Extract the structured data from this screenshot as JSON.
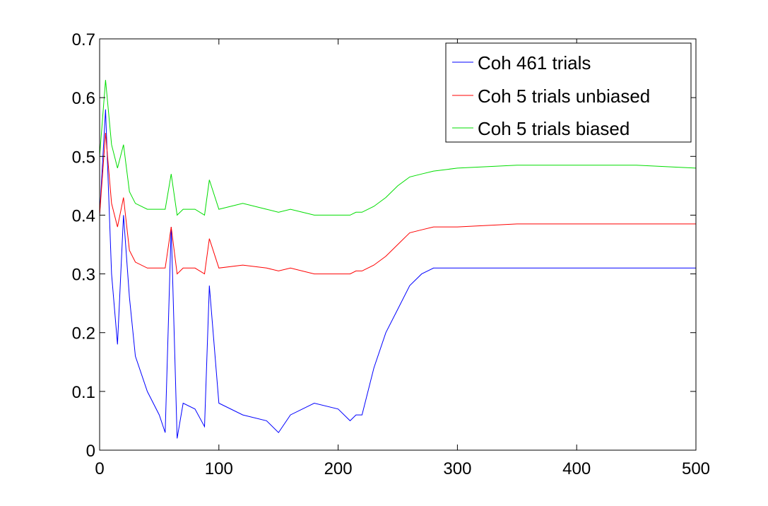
{
  "chart_data": {
    "type": "line",
    "title": "",
    "xlabel": "",
    "ylabel": "",
    "xlim": [
      0,
      500
    ],
    "ylim": [
      0,
      0.7
    ],
    "xticks": [
      0,
      100,
      200,
      300,
      400,
      500
    ],
    "yticks": [
      0,
      0.1,
      0.2,
      0.3,
      0.4,
      0.5,
      0.6,
      0.7
    ],
    "xtick_labels": [
      "0",
      "100",
      "200",
      "300",
      "400",
      "500"
    ],
    "ytick_labels": [
      "0",
      "0.1",
      "0.2",
      "0.3",
      "0.4",
      "0.5",
      "0.6",
      "0.7"
    ],
    "grid": false,
    "legend_position": "top-right",
    "series": [
      {
        "name": "Coh 461 trials",
        "color": "#0000ff",
        "x": [
          0,
          5,
          10,
          15,
          20,
          25,
          30,
          40,
          50,
          55,
          60,
          65,
          70,
          80,
          88,
          92,
          100,
          120,
          140,
          150,
          160,
          180,
          200,
          210,
          215,
          220,
          225,
          230,
          240,
          250,
          260,
          270,
          280,
          300,
          350,
          400,
          450,
          500
        ],
        "y": [
          0.4,
          0.58,
          0.3,
          0.18,
          0.4,
          0.26,
          0.16,
          0.1,
          0.06,
          0.03,
          0.38,
          0.02,
          0.08,
          0.07,
          0.04,
          0.28,
          0.08,
          0.06,
          0.05,
          0.03,
          0.06,
          0.08,
          0.07,
          0.05,
          0.06,
          0.06,
          0.1,
          0.14,
          0.2,
          0.24,
          0.28,
          0.3,
          0.31,
          0.31,
          0.31,
          0.31,
          0.31,
          0.31
        ]
      },
      {
        "name": "Coh 5 trials unbiased",
        "color": "#ff0000",
        "x": [
          0,
          5,
          10,
          15,
          20,
          25,
          30,
          40,
          50,
          55,
          60,
          65,
          70,
          80,
          88,
          92,
          100,
          120,
          140,
          150,
          160,
          180,
          200,
          210,
          215,
          220,
          230,
          240,
          250,
          260,
          270,
          280,
          300,
          350,
          400,
          450,
          500
        ],
        "y": [
          0.4,
          0.54,
          0.42,
          0.38,
          0.43,
          0.34,
          0.32,
          0.31,
          0.31,
          0.31,
          0.38,
          0.3,
          0.31,
          0.31,
          0.3,
          0.36,
          0.31,
          0.315,
          0.31,
          0.305,
          0.31,
          0.3,
          0.3,
          0.3,
          0.305,
          0.305,
          0.315,
          0.33,
          0.35,
          0.37,
          0.375,
          0.38,
          0.38,
          0.385,
          0.385,
          0.385,
          0.385
        ]
      },
      {
        "name": "Coh 5 trials biased",
        "color": "#00dd00",
        "x": [
          0,
          5,
          10,
          15,
          20,
          25,
          30,
          40,
          50,
          55,
          60,
          65,
          70,
          80,
          88,
          92,
          100,
          120,
          140,
          150,
          160,
          180,
          200,
          210,
          215,
          220,
          230,
          240,
          250,
          260,
          270,
          280,
          300,
          350,
          400,
          450,
          500
        ],
        "y": [
          0.5,
          0.63,
          0.52,
          0.48,
          0.52,
          0.44,
          0.42,
          0.41,
          0.41,
          0.41,
          0.47,
          0.4,
          0.41,
          0.41,
          0.4,
          0.46,
          0.41,
          0.42,
          0.41,
          0.405,
          0.41,
          0.4,
          0.4,
          0.4,
          0.405,
          0.405,
          0.415,
          0.43,
          0.45,
          0.465,
          0.47,
          0.475,
          0.48,
          0.485,
          0.485,
          0.485,
          0.48
        ]
      }
    ]
  }
}
